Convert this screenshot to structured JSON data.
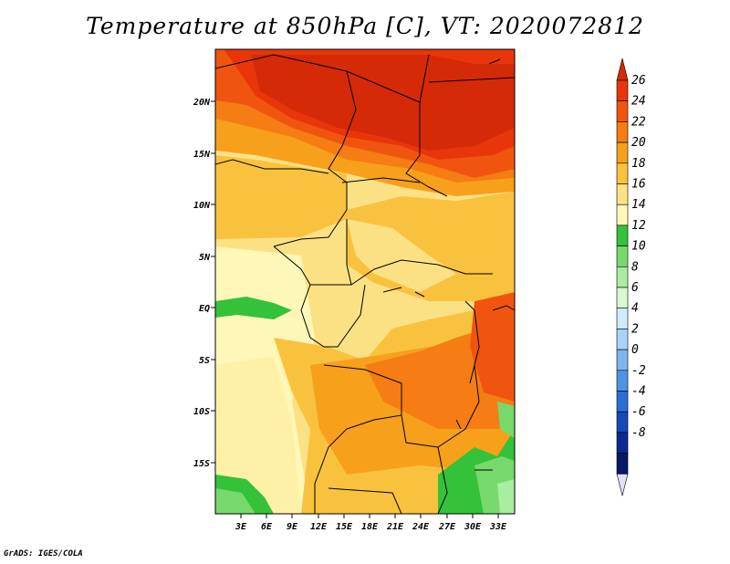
{
  "title": "Temperature at 850hPa [C], VT: 2020072812",
  "credit": "GrADS: IGES/COLA",
  "map": {
    "lat_labels": [
      "20N",
      "15N",
      "10N",
      "5N",
      "EQ",
      "5S",
      "10S",
      "15S"
    ],
    "lon_labels": [
      "3E",
      "6E",
      "9E",
      "12E",
      "15E",
      "18E",
      "21E",
      "24E",
      "27E",
      "30E",
      "33E"
    ]
  },
  "colorbar": {
    "labels": [
      "26",
      "24",
      "22",
      "20",
      "18",
      "16",
      "14",
      "12",
      "10",
      "8",
      "6",
      "4",
      "2",
      "0",
      "-2",
      "-4",
      "-6",
      "-8"
    ],
    "colors": [
      "#e8360a",
      "#f0550f",
      "#f57d14",
      "#f7a01c",
      "#f9c23e",
      "#fce184",
      "#fff7b8",
      "#33c23a",
      "#77d96c",
      "#a8eda0",
      "#d9f7d2",
      "#cfeaf9",
      "#a8d3f5",
      "#7db6ee",
      "#4f94e3",
      "#2a6fd4",
      "#1549b7",
      "#0a2a91",
      "#061866"
    ],
    "top_color": "#d52a08",
    "bottom_color": "#e0e2f5"
  }
}
